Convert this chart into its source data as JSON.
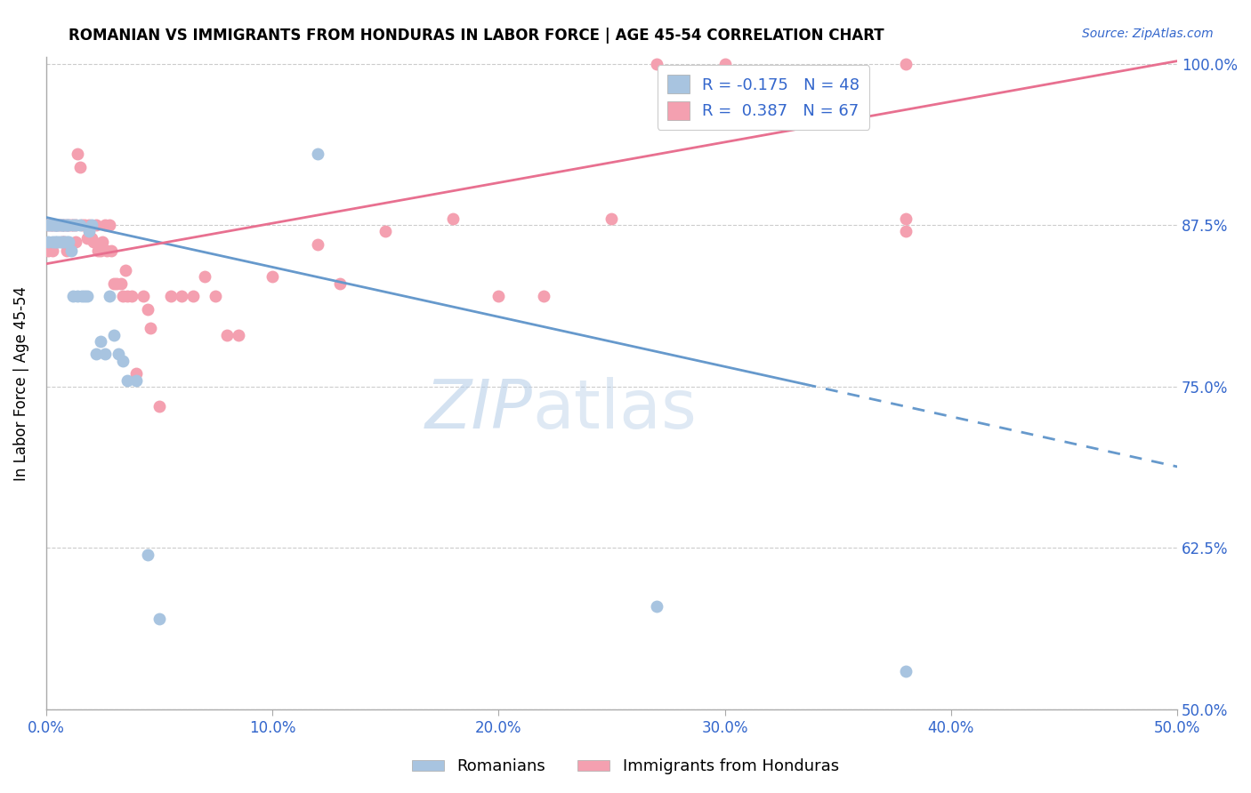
{
  "title": "ROMANIAN VS IMMIGRANTS FROM HONDURAS IN LABOR FORCE | AGE 45-54 CORRELATION CHART",
  "source": "Source: ZipAtlas.com",
  "ylabel": "In Labor Force | Age 45-54",
  "xlim": [
    0.0,
    0.5
  ],
  "ylim": [
    0.5,
    1.005
  ],
  "xtick_vals": [
    0.0,
    0.1,
    0.2,
    0.3,
    0.4,
    0.5
  ],
  "xtick_labels": [
    "0.0%",
    "10.0%",
    "20.0%",
    "30.0%",
    "40.0%",
    "50.0%"
  ],
  "ytick_vals": [
    0.5,
    0.625,
    0.75,
    0.875,
    1.0
  ],
  "ytick_labels": [
    "50.0%",
    "62.5%",
    "75.0%",
    "87.5%",
    "100.0%"
  ],
  "romanian_color": "#a8c4e0",
  "honduran_color": "#f4a0b0",
  "line_romanian_color": "#6699cc",
  "line_honduran_color": "#e87090",
  "legend_R_romanian": "-0.175",
  "legend_N_romanian": "48",
  "legend_R_honduran": "0.387",
  "legend_N_honduran": "67",
  "legend_text_color": "#3366cc",
  "line_rom_x0": 0.0,
  "line_rom_y0": 0.881,
  "line_rom_x1": 0.335,
  "line_rom_y1": 0.752,
  "line_rom_dash_x0": 0.335,
  "line_rom_dash_y0": 0.752,
  "line_rom_dash_x1": 0.5,
  "line_rom_dash_y1": 0.688,
  "line_hon_x0": 0.0,
  "line_hon_y0": 0.845,
  "line_hon_x1": 0.5,
  "line_hon_y1": 1.002,
  "romanian_x": [
    0.001,
    0.001,
    0.002,
    0.003,
    0.003,
    0.004,
    0.004,
    0.004,
    0.005,
    0.005,
    0.005,
    0.006,
    0.006,
    0.007,
    0.007,
    0.007,
    0.008,
    0.008,
    0.009,
    0.009,
    0.009,
    0.01,
    0.01,
    0.011,
    0.012,
    0.012,
    0.013,
    0.014,
    0.015,
    0.016,
    0.017,
    0.018,
    0.019,
    0.02,
    0.022,
    0.024,
    0.026,
    0.028,
    0.03,
    0.032,
    0.034,
    0.036,
    0.04,
    0.045,
    0.05,
    0.12,
    0.27,
    0.38
  ],
  "romanian_y": [
    0.875,
    0.862,
    0.875,
    0.875,
    0.862,
    0.875,
    0.875,
    0.862,
    0.875,
    0.875,
    0.862,
    0.875,
    0.862,
    0.875,
    0.862,
    0.875,
    0.875,
    0.862,
    0.875,
    0.862,
    0.875,
    0.875,
    0.862,
    0.855,
    0.875,
    0.82,
    0.875,
    0.82,
    0.875,
    0.82,
    0.82,
    0.82,
    0.87,
    0.875,
    0.775,
    0.785,
    0.775,
    0.82,
    0.79,
    0.775,
    0.77,
    0.755,
    0.755,
    0.62,
    0.57,
    0.93,
    0.58,
    0.53
  ],
  "honduran_x": [
    0.001,
    0.001,
    0.002,
    0.003,
    0.003,
    0.004,
    0.005,
    0.006,
    0.007,
    0.007,
    0.008,
    0.008,
    0.009,
    0.009,
    0.01,
    0.011,
    0.012,
    0.013,
    0.013,
    0.014,
    0.015,
    0.016,
    0.017,
    0.018,
    0.019,
    0.02,
    0.021,
    0.022,
    0.023,
    0.024,
    0.025,
    0.026,
    0.027,
    0.028,
    0.029,
    0.03,
    0.031,
    0.033,
    0.034,
    0.035,
    0.036,
    0.038,
    0.04,
    0.043,
    0.045,
    0.046,
    0.05,
    0.055,
    0.06,
    0.065,
    0.07,
    0.075,
    0.08,
    0.085,
    0.1,
    0.12,
    0.13,
    0.15,
    0.18,
    0.2,
    0.22,
    0.25,
    0.27,
    0.3,
    0.38,
    0.38,
    0.38
  ],
  "honduran_y": [
    0.875,
    0.855,
    0.875,
    0.875,
    0.855,
    0.875,
    0.875,
    0.875,
    0.875,
    0.862,
    0.875,
    0.862,
    0.875,
    0.855,
    0.875,
    0.875,
    0.875,
    0.862,
    0.875,
    0.93,
    0.92,
    0.875,
    0.875,
    0.865,
    0.875,
    0.865,
    0.862,
    0.875,
    0.855,
    0.855,
    0.862,
    0.875,
    0.855,
    0.875,
    0.855,
    0.83,
    0.83,
    0.83,
    0.82,
    0.84,
    0.82,
    0.82,
    0.76,
    0.82,
    0.81,
    0.795,
    0.735,
    0.82,
    0.82,
    0.82,
    0.835,
    0.82,
    0.79,
    0.79,
    0.835,
    0.86,
    0.83,
    0.87,
    0.88,
    0.82,
    0.82,
    0.88,
    1.0,
    1.0,
    1.0,
    0.88,
    0.87
  ]
}
